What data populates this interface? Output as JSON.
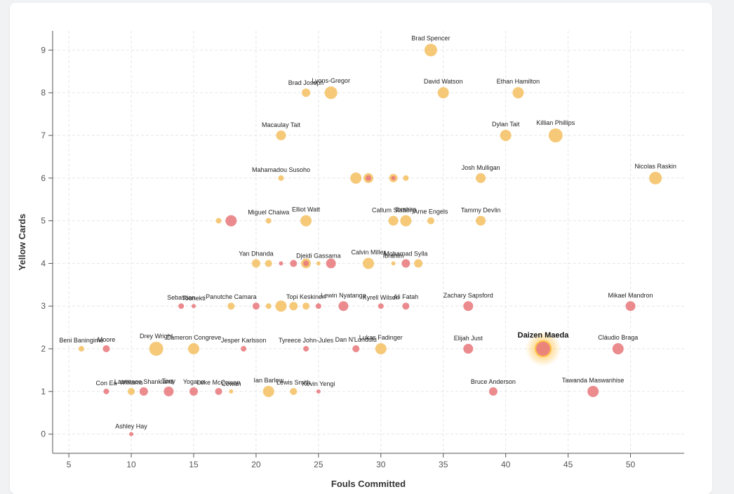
{
  "chart_data": {
    "type": "scatter",
    "title": "",
    "xlabel": "Fouls Committed",
    "ylabel": "Yellow Cards",
    "xlim": [
      3.7,
      54.3
    ],
    "ylim": [
      -0.45,
      9.45
    ],
    "xticks": [
      5,
      10,
      15,
      20,
      25,
      30,
      35,
      40,
      45,
      50
    ],
    "yticks": [
      0,
      1,
      2,
      3,
      4,
      5,
      6,
      7,
      8,
      9
    ],
    "grid": true,
    "colors": {
      "high": "#f5c061",
      "low": "#e8777a",
      "grid": "#e6e6e6",
      "axis": "#555555",
      "highlight_glow": "#ffc247"
    },
    "highlighted": "Daizen Maeda",
    "points": [
      {
        "label": "Brad Spencer",
        "x": 34,
        "y": 9,
        "r": 9,
        "c": "high"
      },
      {
        "label": "Brad Joseph",
        "x": 24,
        "y": 8,
        "r": 6,
        "c": "high"
      },
      {
        "label": "Lyons-Gregor",
        "x": 26,
        "y": 8,
        "r": 9,
        "c": "high"
      },
      {
        "label": "David Watson",
        "x": 35,
        "y": 8,
        "r": 8,
        "c": "high"
      },
      {
        "label": "Ethan Hamilton",
        "x": 41,
        "y": 8,
        "r": 8,
        "c": "high"
      },
      {
        "label": "Macaulay Tait",
        "x": 22,
        "y": 7,
        "r": 7,
        "c": "high"
      },
      {
        "label": "Dylan Tait",
        "x": 40,
        "y": 7,
        "r": 8,
        "c": "high"
      },
      {
        "label": "Killian Phillips",
        "x": 44,
        "y": 7,
        "r": 10,
        "c": "high"
      },
      {
        "label": "Mahamadou Susoho",
        "x": 22,
        "y": 6,
        "r": 4,
        "c": "high"
      },
      {
        "label": "",
        "x": 28,
        "y": 6,
        "r": 8,
        "c": "high"
      },
      {
        "label": "",
        "x": 29,
        "y": 6,
        "r": 7,
        "c": "high"
      },
      {
        "label": "",
        "x": 29,
        "y": 6,
        "r": 4,
        "c": "low"
      },
      {
        "label": "",
        "x": 31,
        "y": 6,
        "r": 6,
        "c": "high"
      },
      {
        "label": "",
        "x": 31,
        "y": 6,
        "r": 3,
        "c": "low"
      },
      {
        "label": "",
        "x": 32,
        "y": 6,
        "r": 4,
        "c": "high"
      },
      {
        "label": "Josh Mulligan",
        "x": 38,
        "y": 6,
        "r": 7,
        "c": "high"
      },
      {
        "label": "Nicolas Raskin",
        "x": 52,
        "y": 6,
        "r": 9,
        "c": "high"
      },
      {
        "label": "",
        "x": 17,
        "y": 5,
        "r": 4,
        "c": "high"
      },
      {
        "label": "",
        "x": 18,
        "y": 5,
        "r": 8,
        "c": "low"
      },
      {
        "label": "Miguel Chaiwa",
        "x": 21,
        "y": 5,
        "r": 4,
        "c": "high"
      },
      {
        "label": "Elliot Watt",
        "x": 24,
        "y": 5,
        "r": 8,
        "c": "high"
      },
      {
        "label": "Callum Slattery",
        "x": 31,
        "y": 5,
        "r": 7,
        "c": "high"
      },
      {
        "label": "Ibrahim",
        "x": 32,
        "y": 5,
        "r": 8,
        "c": "high"
      },
      {
        "label": "Arne Engels",
        "x": 34,
        "y": 5,
        "r": 5,
        "c": "high"
      },
      {
        "label": "Tammy Devlin",
        "x": 38,
        "y": 5,
        "r": 7,
        "c": "high"
      },
      {
        "label": "Yan Dhanda",
        "x": 20,
        "y": 4,
        "r": 6,
        "c": "high"
      },
      {
        "label": "",
        "x": 21,
        "y": 4,
        "r": 5,
        "c": "high"
      },
      {
        "label": "",
        "x": 22,
        "y": 4,
        "r": 3,
        "c": "low"
      },
      {
        "label": "",
        "x": 23,
        "y": 4,
        "r": 5,
        "c": "low"
      },
      {
        "label": "",
        "x": 24,
        "y": 4,
        "r": 7,
        "c": "high"
      },
      {
        "label": "",
        "x": 24,
        "y": 4,
        "r": 4,
        "c": "low"
      },
      {
        "label": "Djeidi Gassama",
        "x": 25,
        "y": 4,
        "r": 3,
        "c": "high"
      },
      {
        "label": "",
        "x": 26,
        "y": 4,
        "r": 7,
        "c": "low"
      },
      {
        "label": "Calvin Miller",
        "x": 29,
        "y": 4,
        "r": 8,
        "c": "high"
      },
      {
        "label": "Ibrahim",
        "x": 31,
        "y": 4,
        "r": 3,
        "c": "high"
      },
      {
        "label": "Mohamad Sylla",
        "x": 32,
        "y": 4,
        "r": 6,
        "c": "low"
      },
      {
        "label": "",
        "x": 33,
        "y": 4,
        "r": 6,
        "c": "high"
      },
      {
        "label": "Sebastian",
        "x": 14,
        "y": 3,
        "r": 4,
        "c": "low"
      },
      {
        "label": "Tounekti",
        "x": 15,
        "y": 3,
        "r": 3,
        "c": "low"
      },
      {
        "label": "Panutche Camara",
        "x": 18,
        "y": 3,
        "r": 5,
        "c": "high"
      },
      {
        "label": "",
        "x": 20,
        "y": 3,
        "r": 5,
        "c": "low"
      },
      {
        "label": "",
        "x": 21,
        "y": 3,
        "r": 4,
        "c": "high"
      },
      {
        "label": "",
        "x": 22,
        "y": 3,
        "r": 8,
        "c": "high"
      },
      {
        "label": "",
        "x": 23,
        "y": 3,
        "r": 6,
        "c": "high"
      },
      {
        "label": "Topi Keskinen",
        "x": 24,
        "y": 3,
        "r": 5,
        "c": "high"
      },
      {
        "label": "",
        "x": 25,
        "y": 3,
        "r": 4,
        "c": "low"
      },
      {
        "label": "Lewin Nyatanga",
        "x": 27,
        "y": 3,
        "r": 7,
        "c": "low"
      },
      {
        "label": "Kyrell Wilson",
        "x": 30,
        "y": 3,
        "r": 4,
        "c": "low"
      },
      {
        "label": "Ali Fatah",
        "x": 32,
        "y": 3,
        "r": 5,
        "c": "low"
      },
      {
        "label": "Zachary Sapsford",
        "x": 37,
        "y": 3,
        "r": 7,
        "c": "low"
      },
      {
        "label": "Mikael Mandron",
        "x": 50,
        "y": 3,
        "r": 7,
        "c": "low"
      },
      {
        "label": "Beni Baningime",
        "x": 6,
        "y": 2,
        "r": 4,
        "c": "high"
      },
      {
        "label": "Moore",
        "x": 8,
        "y": 2,
        "r": 5,
        "c": "low"
      },
      {
        "label": "Drey Wright",
        "x": 12,
        "y": 2,
        "r": 10,
        "c": "high"
      },
      {
        "label": "Cameron Congreve",
        "x": 15,
        "y": 2,
        "r": 8,
        "c": "high"
      },
      {
        "label": "Jesper Karlsson",
        "x": 19,
        "y": 2,
        "r": 4,
        "c": "low"
      },
      {
        "label": "Tyreece John-Jules",
        "x": 24,
        "y": 2,
        "r": 4,
        "c": "low"
      },
      {
        "label": "Dan N'Lundulu",
        "x": 28,
        "y": 2,
        "r": 5,
        "c": "low"
      },
      {
        "label": "Lukas Fadinger",
        "x": 30,
        "y": 2,
        "r": 8,
        "c": "high"
      },
      {
        "label": "Elijah Just",
        "x": 37,
        "y": 2,
        "r": 7,
        "c": "low"
      },
      {
        "label": "Daizen Maeda",
        "x": 43,
        "y": 2,
        "r": 11,
        "c": "low"
      },
      {
        "label": "Cláudio Braga",
        "x": 49,
        "y": 2,
        "r": 8,
        "c": "low"
      },
      {
        "label": "Con Ea",
        "x": 8,
        "y": 1,
        "r": 4,
        "c": "low"
      },
      {
        "label": "Williams",
        "x": 10,
        "y": 1,
        "r": 5,
        "c": "high"
      },
      {
        "label": "Lawrence Shankland",
        "x": 11,
        "y": 1,
        "r": 6,
        "c": "low"
      },
      {
        "label": "Tony",
        "x": 13,
        "y": 1,
        "r": 7,
        "c": "low"
      },
      {
        "label": "Yogane",
        "x": 15,
        "y": 1,
        "r": 6,
        "c": "low"
      },
      {
        "label": "Luke McCowan",
        "x": 17,
        "y": 1,
        "r": 5,
        "c": "low"
      },
      {
        "label": "Cowan",
        "x": 18,
        "y": 1,
        "r": 3,
        "c": "high"
      },
      {
        "label": "Ian Barlow",
        "x": 21,
        "y": 1,
        "r": 8,
        "c": "high"
      },
      {
        "label": "Lewis Smith",
        "x": 23,
        "y": 1,
        "r": 5,
        "c": "high"
      },
      {
        "label": "Kevin Yengi",
        "x": 25,
        "y": 1,
        "r": 3,
        "c": "low"
      },
      {
        "label": "Bruce Anderson",
        "x": 39,
        "y": 1,
        "r": 6,
        "c": "low"
      },
      {
        "label": "Tawanda Maswanhise",
        "x": 47,
        "y": 1,
        "r": 8,
        "c": "low"
      },
      {
        "label": "Ashley Hay",
        "x": 10,
        "y": 0,
        "r": 3,
        "c": "low"
      }
    ]
  }
}
